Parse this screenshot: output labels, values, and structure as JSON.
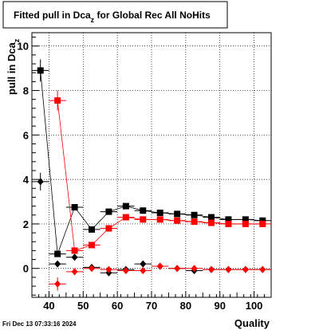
{
  "chart_data": {
    "type": "scatter",
    "title_main": "Fitted pull in Dca",
    "title_sub": "z",
    "title_rest": " for Global Rec All NoHits",
    "xlabel": "Quality",
    "ylabel_main": "pull in Dca",
    "ylabel_sub": "z",
    "xlim": [
      35,
      105
    ],
    "ylim": [
      -1.3,
      10.6
    ],
    "xticks": [
      "40",
      "50",
      "60",
      "70",
      "80",
      "90",
      "100"
    ],
    "yticks": [
      "0",
      "2",
      "4",
      "6",
      "8",
      "10"
    ],
    "grid": true,
    "series": [
      {
        "marker": "square",
        "color": "#000000",
        "line": true,
        "points": [
          {
            "x": 37.5,
            "y": 8.9,
            "yerr": 0.5
          },
          {
            "x": 42.5,
            "y": 0.65,
            "yerr": 0.1
          },
          {
            "x": 47.5,
            "y": 2.75,
            "yerr": 0.05
          },
          {
            "x": 52.5,
            "y": 1.75,
            "yerr": 0.05
          },
          {
            "x": 57.5,
            "y": 2.55,
            "yerr": 0.05
          },
          {
            "x": 62.5,
            "y": 2.8,
            "yerr": 0.05
          },
          {
            "x": 67.5,
            "y": 2.6,
            "yerr": 0.05
          },
          {
            "x": 72.5,
            "y": 2.5,
            "yerr": 0.05
          },
          {
            "x": 77.5,
            "y": 2.45,
            "yerr": 0.05
          },
          {
            "x": 82.5,
            "y": 2.4,
            "yerr": 0.05
          },
          {
            "x": 87.5,
            "y": 2.3,
            "yerr": 0.05
          },
          {
            "x": 92.5,
            "y": 2.2,
            "yerr": 0.05
          },
          {
            "x": 97.5,
            "y": 2.2,
            "yerr": 0.05
          },
          {
            "x": 102.5,
            "y": 2.15,
            "yerr": 0.05
          }
        ]
      },
      {
        "marker": "square",
        "color": "#ff0000",
        "line": true,
        "points": [
          {
            "x": 42.5,
            "y": 7.55,
            "yerr": 0.45
          },
          {
            "x": 47.5,
            "y": 0.8,
            "yerr": 0.05
          },
          {
            "x": 52.5,
            "y": 1.05,
            "yerr": 0.05
          },
          {
            "x": 57.5,
            "y": 1.8,
            "yerr": 0.05
          },
          {
            "x": 62.5,
            "y": 2.3,
            "yerr": 0.05
          },
          {
            "x": 67.5,
            "y": 2.2,
            "yerr": 0.05
          },
          {
            "x": 72.5,
            "y": 2.2,
            "yerr": 0.05
          },
          {
            "x": 77.5,
            "y": 2.15,
            "yerr": 0.05
          },
          {
            "x": 82.5,
            "y": 2.1,
            "yerr": 0.05
          },
          {
            "x": 87.5,
            "y": 2.05,
            "yerr": 0.05
          },
          {
            "x": 92.5,
            "y": 2.0,
            "yerr": 0.05
          },
          {
            "x": 97.5,
            "y": 2.0,
            "yerr": 0.05
          },
          {
            "x": 102.5,
            "y": 2.0,
            "yerr": 0.05
          }
        ]
      },
      {
        "marker": "diamond",
        "color": "#000000",
        "line": false,
        "points": [
          {
            "x": 37.5,
            "y": 3.9,
            "yerr": 0.4
          },
          {
            "x": 42.5,
            "y": 0.2,
            "yerr": 0.1
          },
          {
            "x": 47.5,
            "y": 0.5,
            "yerr": 0.05
          },
          {
            "x": 52.5,
            "y": 0.05,
            "yerr": 0.05
          },
          {
            "x": 57.5,
            "y": -0.2,
            "yerr": 0.05
          },
          {
            "x": 62.5,
            "y": -0.05,
            "yerr": 0.05
          },
          {
            "x": 67.5,
            "y": 0.2,
            "yerr": 0.05
          },
          {
            "x": 72.5,
            "y": 0.1,
            "yerr": 0.05
          },
          {
            "x": 77.5,
            "y": 0.0,
            "yerr": 0.05
          },
          {
            "x": 82.5,
            "y": -0.1,
            "yerr": 0.05
          },
          {
            "x": 87.5,
            "y": -0.05,
            "yerr": 0.05
          },
          {
            "x": 92.5,
            "y": -0.05,
            "yerr": 0.05
          },
          {
            "x": 97.5,
            "y": -0.05,
            "yerr": 0.05
          },
          {
            "x": 102.5,
            "y": -0.05,
            "yerr": 0.05
          }
        ]
      },
      {
        "marker": "diamond",
        "color": "#ff0000",
        "line": false,
        "points": [
          {
            "x": 42.5,
            "y": -0.7,
            "yerr": 0.3
          },
          {
            "x": 47.5,
            "y": -0.15,
            "yerr": 0.05
          },
          {
            "x": 52.5,
            "y": 0.0,
            "yerr": 0.05
          },
          {
            "x": 57.5,
            "y": -0.05,
            "yerr": 0.05
          },
          {
            "x": 62.5,
            "y": -0.1,
            "yerr": 0.05
          },
          {
            "x": 67.5,
            "y": -0.1,
            "yerr": 0.05
          },
          {
            "x": 72.5,
            "y": 0.1,
            "yerr": 0.05
          },
          {
            "x": 77.5,
            "y": 0.0,
            "yerr": 0.05
          },
          {
            "x": 82.5,
            "y": 0.0,
            "yerr": 0.05
          },
          {
            "x": 87.5,
            "y": -0.05,
            "yerr": 0.05
          },
          {
            "x": 92.5,
            "y": -0.05,
            "yerr": 0.05
          },
          {
            "x": 97.5,
            "y": -0.05,
            "yerr": 0.05
          },
          {
            "x": 102.5,
            "y": -0.05,
            "yerr": 0.05
          }
        ]
      }
    ]
  },
  "footer": {
    "timestamp": "Fri Dec 13 07:33:16 2024"
  }
}
